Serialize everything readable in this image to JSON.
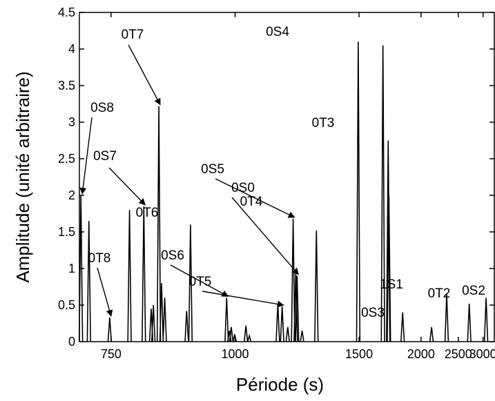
{
  "chart_data": {
    "type": "bar",
    "title": "",
    "xlabel": "Période (s)",
    "ylabel": "Amplitude (unité arbitraire)",
    "ylim": [
      0,
      4.5
    ],
    "y_ticks": [
      0,
      0.5,
      1,
      1.5,
      2,
      2.5,
      3,
      3.5,
      4,
      4.5
    ],
    "y_tick_labels": [
      "0",
      "0.5",
      "1",
      "1.5",
      "2",
      "2.5",
      "3",
      "3.5",
      "4",
      "4.5"
    ],
    "x_scale": "frequency (1/period)",
    "xlim_period_s": [
      705,
      3300
    ],
    "x_ticks": [
      750,
      1000,
      1500,
      2000,
      2500,
      3000
    ],
    "x_tick_labels": [
      "750",
      "1000",
      "1500",
      "2000",
      "2500",
      "3000"
    ],
    "grid": false,
    "peaks": [
      {
        "period": 707,
        "amplitude": 2.0
      },
      {
        "period": 718,
        "amplitude": 1.65
      },
      {
        "period": 748,
        "amplitude": 0.33
      },
      {
        "period": 779,
        "amplitude": 1.8
      },
      {
        "period": 803,
        "amplitude": 1.85
      },
      {
        "period": 816,
        "amplitude": 0.45
      },
      {
        "period": 820,
        "amplitude": 0.5
      },
      {
        "period": 830,
        "amplitude": 3.22
      },
      {
        "period": 835,
        "amplitude": 0.8
      },
      {
        "period": 841,
        "amplitude": 0.6
      },
      {
        "period": 885,
        "amplitude": 0.42
      },
      {
        "period": 893,
        "amplitude": 1.6
      },
      {
        "period": 978,
        "amplitude": 0.6
      },
      {
        "period": 985,
        "amplitude": 0.15
      },
      {
        "period": 990,
        "amplitude": 0.2
      },
      {
        "period": 999,
        "amplitude": 0.1
      },
      {
        "period": 1030,
        "amplitude": 0.22
      },
      {
        "period": 1040,
        "amplitude": 0.08
      },
      {
        "period": 1130,
        "amplitude": 0.52
      },
      {
        "period": 1145,
        "amplitude": 0.48
      },
      {
        "period": 1165,
        "amplitude": 0.2
      },
      {
        "period": 1185,
        "amplitude": 1.68
      },
      {
        "period": 1195,
        "amplitude": 0.95
      },
      {
        "period": 1200,
        "amplitude": 0.9
      },
      {
        "period": 1220,
        "amplitude": 0.15
      },
      {
        "period": 1280,
        "amplitude": 1.52
      },
      {
        "period": 1495,
        "amplitude": 4.1
      },
      {
        "period": 1660,
        "amplitude": 4.05
      },
      {
        "period": 1700,
        "amplitude": 2.75
      },
      {
        "period": 1705,
        "amplitude": 2.0
      },
      {
        "period": 1820,
        "amplitude": 0.4
      },
      {
        "period": 2120,
        "amplitude": 0.2
      },
      {
        "period": 2320,
        "amplitude": 0.65
      },
      {
        "period": 2700,
        "amplitude": 0.52
      },
      {
        "period": 3075,
        "amplitude": 0.6
      }
    ],
    "annotations": [
      {
        "label": "0S8",
        "arrow": true,
        "target_period": 707,
        "target_amp": 2.0
      },
      {
        "label": "0T8",
        "arrow": true,
        "target_period": 748,
        "target_amp": 0.33
      },
      {
        "label": "0S7",
        "arrow": true,
        "target_period": 803,
        "target_amp": 1.85
      },
      {
        "label": "0T7",
        "arrow": true,
        "target_period": 830,
        "target_amp": 3.22
      },
      {
        "label": "0T6",
        "arrow": false,
        "target_period": 893,
        "target_amp": 1.6
      },
      {
        "label": "0S6",
        "arrow": true,
        "target_period": 978,
        "target_amp": 0.6
      },
      {
        "label": "0T5",
        "arrow": true,
        "target_period": 1145,
        "target_amp": 0.48
      },
      {
        "label": "0S5",
        "arrow": true,
        "target_period": 1185,
        "target_amp": 1.68
      },
      {
        "label": "0S0",
        "arrow": true,
        "target_period": 1200,
        "target_amp": 0.9
      },
      {
        "label": "0T4",
        "arrow": false,
        "target_period": 1280,
        "target_amp": 1.52
      },
      {
        "label": "0S4",
        "arrow": false,
        "target_period": 1495,
        "target_amp": 4.1
      },
      {
        "label": "0T3",
        "arrow": false,
        "target_period": 1700,
        "target_amp": 2.75
      },
      {
        "label": "0S3",
        "arrow": false,
        "target_period": 2120,
        "target_amp": 0.2
      },
      {
        "label": "1S1",
        "arrow": false,
        "target_period": 2320,
        "target_amp": 0.65
      },
      {
        "label": "0T2",
        "arrow": false,
        "target_period": 2700,
        "target_amp": 0.52
      },
      {
        "label": "0S2",
        "arrow": false,
        "target_period": 3075,
        "target_amp": 0.6
      }
    ]
  }
}
